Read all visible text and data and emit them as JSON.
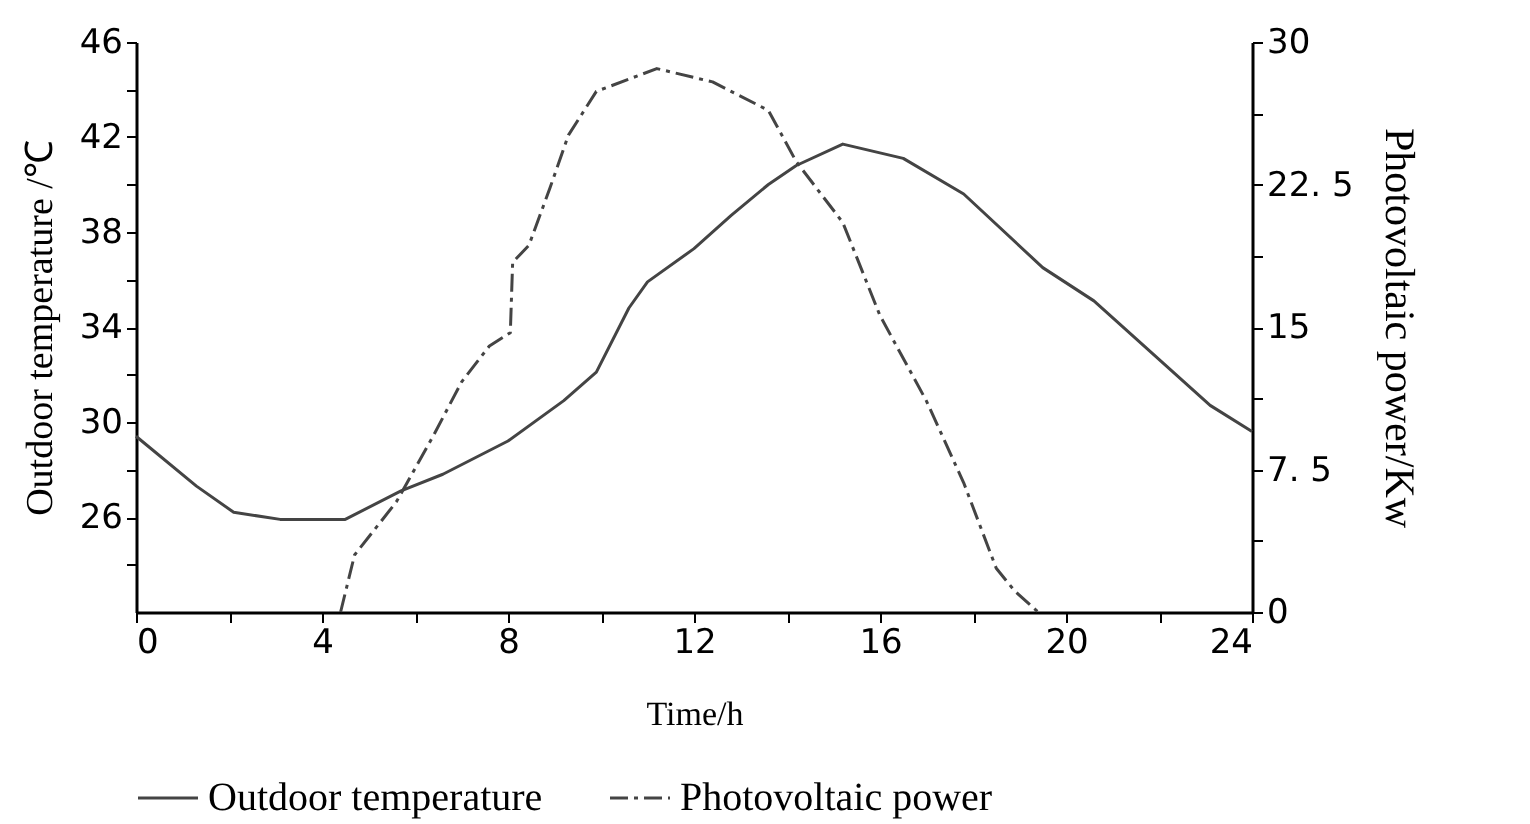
{
  "chart_data": {
    "type": "line",
    "xlabel": "Time/h",
    "ylabel": "Outdoor temperature /℃",
    "y2label": "Photovoltaic power/Kw",
    "xlim": [
      0,
      24
    ],
    "xticks": [
      0,
      {
        "value": 2,
        "label": null
      },
      4,
      {
        "value": 6,
        "label": null
      },
      8,
      {
        "value": 10,
        "label": null
      },
      12,
      {
        "value": 14,
        "label": null
      },
      16,
      {
        "value": 18,
        "label": null
      },
      20,
      {
        "value": 22,
        "label": null
      },
      24
    ],
    "ylim": [
      22,
      46
    ],
    "yticks": [
      {
        "value": 24,
        "label": null
      },
      26,
      {
        "value": 28,
        "label": null
      },
      30,
      {
        "value": 32,
        "label": null
      },
      34,
      {
        "value": 36,
        "label": null
      },
      38,
      {
        "value": 40,
        "label": null
      },
      42,
      {
        "value": 44,
        "label": null
      },
      46
    ],
    "y2lim": [
      0,
      30
    ],
    "y2ticks": [
      0,
      {
        "value": 3.75,
        "label": null
      },
      {
        "value": 7.5,
        "label": "7. 5"
      },
      {
        "value": 11.25,
        "label": null
      },
      15,
      {
        "value": 18.75,
        "label": null
      },
      {
        "value": 22.5,
        "label": "22. 5"
      },
      {
        "value": 26.25,
        "label": null
      },
      30
    ],
    "grid": false,
    "legend": "bottom",
    "marker": "none",
    "series": [
      {
        "name": "Outdoor temperature",
        "color": "#444444",
        "line_style": "solid",
        "x": [
          0,
          1.3,
          2.1,
          3.1,
          4.5,
          5.7,
          6.6,
          8,
          9.2,
          9.9,
          10.6,
          11,
          12,
          12.8,
          13.6,
          14.2,
          15.2,
          16.5,
          17.8,
          19.5,
          20.6,
          23.1,
          24
        ],
        "values": [
          29.4,
          27.3,
          26.2,
          25.9,
          25.9,
          27.1,
          27.8,
          29.2,
          30.9,
          32.1,
          34.8,
          35.9,
          37.3,
          38.7,
          40,
          40.8,
          41.7,
          41.1,
          39.6,
          36.5,
          35.1,
          30.7,
          29.6
        ]
      },
      {
        "name": "Photovoltaic power",
        "color": "#444444",
        "line_style": "dashdot",
        "axis": "y2",
        "x": [
          4.4,
          4.7,
          5.6,
          6.4,
          7,
          7.6,
          8.05,
          8.1,
          8.45,
          8.9,
          9.3,
          9.9,
          11.2,
          12.4,
          13.6,
          14.2,
          15.2,
          16,
          17,
          17.8,
          18.5,
          18.9,
          19.4
        ],
        "values": [
          0,
          3,
          5.8,
          9.3,
          12.1,
          14,
          14.7,
          18.4,
          19.3,
          22.3,
          25.1,
          27.4,
          28.6,
          27.9,
          26.4,
          23.7,
          20.5,
          15.6,
          11.1,
          6.8,
          2.3,
          1.1,
          0
        ]
      }
    ]
  }
}
